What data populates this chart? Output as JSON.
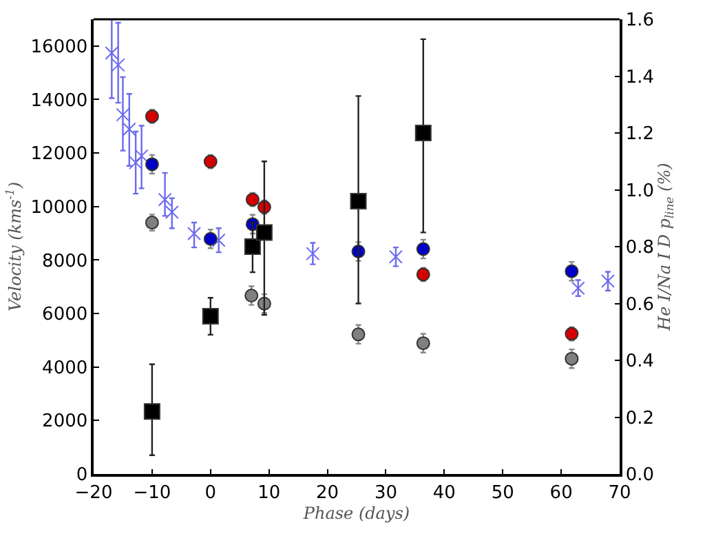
{
  "chart_data": {
    "type": "scatter",
    "xlabel": "Phase (days)",
    "ylabel": "Velocity (kms$^{-1}$)",
    "y2label": "He I/Na I D p$_{line}$ (%)",
    "xlim": [
      -20,
      70
    ],
    "xticks": [
      {
        "value": -20,
        "label": "−20"
      },
      {
        "value": -10,
        "label": "−10"
      },
      0,
      10,
      20,
      30,
      40,
      50,
      60,
      70
    ],
    "ylim": [
      0,
      17000
    ],
    "yticks": [
      0,
      2000,
      4000,
      6000,
      8000,
      10000,
      12000,
      14000,
      16000
    ],
    "y2lim": [
      0,
      1.6
    ],
    "y2ticks": [
      {
        "value": 0,
        "label": "0.0"
      },
      {
        "value": 0.2,
        "label": "0.2"
      },
      {
        "value": 0.4,
        "label": "0.4"
      },
      {
        "value": 0.6,
        "label": "0.6"
      },
      {
        "value": 0.8,
        "label": "0.8"
      },
      {
        "value": 1.0,
        "label": "1.0"
      },
      {
        "value": 1.2,
        "label": "1.2"
      },
      {
        "value": 1.4,
        "label": "1.4"
      },
      {
        "value": 1.6,
        "label": "1.6"
      }
    ],
    "series": [
      {
        "color": "#6a6af0",
        "marker": "cross",
        "x": [
          -16.9,
          -15.8,
          -15.0,
          -13.9,
          -12.8,
          -11.8,
          -7.8,
          -6.6,
          -2.8,
          1.4,
          7.2,
          17.5,
          31.7,
          62.9,
          68.0
        ],
        "values": [
          15740,
          15290,
          13430,
          12890,
          11640,
          11890,
          10260,
          9790,
          8990,
          8740,
          null,
          8240,
          8120,
          6950,
          7210
        ],
        "errors": [
          [
            14050,
            17000
          ],
          [
            13880,
            16870
          ],
          [
            12090,
            14840
          ],
          [
            11520,
            14210
          ],
          [
            10480,
            12800
          ],
          [
            10680,
            13020
          ],
          [
            9650,
            11260
          ],
          [
            9190,
            10310
          ],
          [
            8470,
            9400
          ],
          450,
          null,
          400,
          350,
          300,
          350
        ]
      },
      {
        "color": "#808080",
        "marker": "circle",
        "x": [
          -10,
          7,
          9.2,
          25.3,
          36.4,
          61.8
        ],
        "values": [
          9400,
          6670,
          6370,
          5220,
          4890,
          4310
        ],
        "errors": [
          300,
          350,
          350,
          350,
          350,
          350
        ]
      },
      {
        "color": "#d40000",
        "marker": "circle",
        "x": [
          -10,
          0,
          7.2,
          9.2,
          25.3,
          36.4,
          61.8
        ],
        "values": [
          13370,
          11680,
          10260,
          9980,
          null,
          7460,
          5240
        ],
        "errors": [
          250,
          250,
          250,
          250,
          null,
          250,
          250
        ]
      },
      {
        "color": "#0000c8",
        "marker": "circle",
        "x": [
          -10,
          0,
          7.2,
          25.3,
          36.4,
          61.8
        ],
        "values": [
          11580,
          8790,
          9340,
          8320,
          8410,
          7580
        ],
        "errors": [
          350,
          350,
          350,
          350,
          350,
          350
        ]
      },
      {
        "color": "#000000",
        "marker": "square",
        "axis": "y2",
        "x": [
          -10,
          0,
          7.2,
          9.2,
          25.3,
          36.4
        ],
        "values": [
          0.22,
          0.555,
          0.8,
          0.85,
          0.96,
          1.2
        ],
        "errors": [
          [
            0.066,
            0.386
          ],
          [
            0.49,
            0.62
          ],
          [
            0.71,
            0.885
          ],
          [
            0.56,
            1.1
          ],
          [
            0.6,
            1.33
          ],
          [
            0.85,
            1.53
          ]
        ]
      }
    ]
  }
}
